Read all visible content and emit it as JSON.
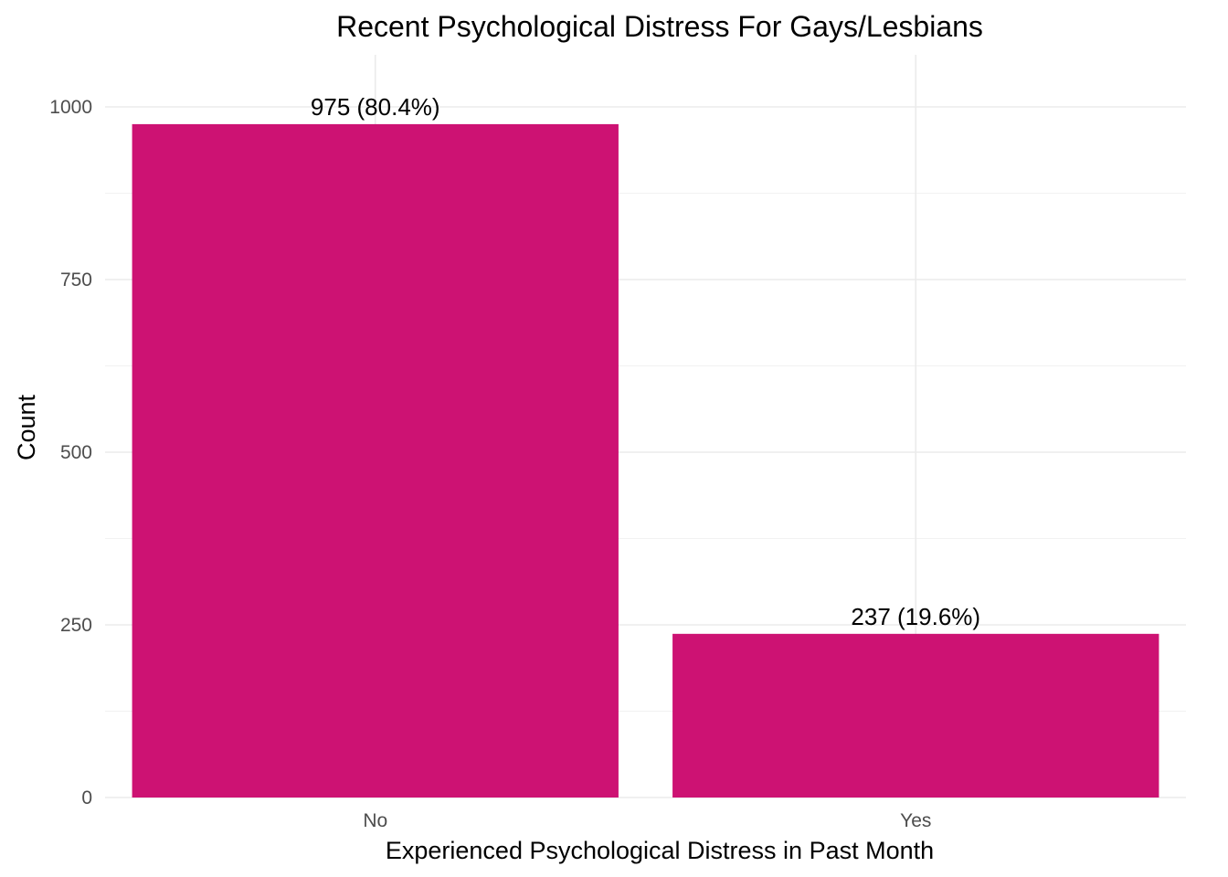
{
  "chart_data": {
    "type": "bar",
    "title": "Recent Psychological Distress For Gays/Lesbians",
    "xlabel": "Experienced Psychological Distress in Past Month",
    "ylabel": "Count",
    "categories": [
      "No",
      "Yes"
    ],
    "values": [
      975,
      237
    ],
    "data_labels": [
      "975 (80.4%)",
      "237 (19.6%)"
    ],
    "yticks": [
      0,
      250,
      500,
      750,
      1000
    ],
    "ylim": [
      0,
      1075
    ],
    "grid": true,
    "legend": "none",
    "colors": {
      "bar": "#CD1273"
    }
  }
}
